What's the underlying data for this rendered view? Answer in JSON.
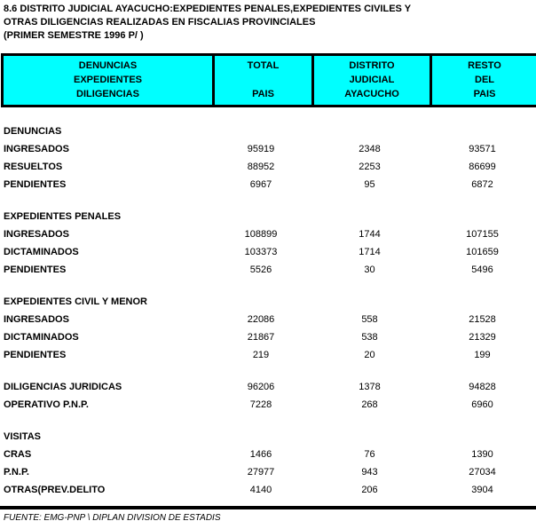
{
  "title": {
    "line1": "8.6  DISTRITO JUDICIAL AYACUCHO:EXPEDIENTES PENALES,EXPEDIENTES CIVILES Y",
    "line2": "OTRAS DILIGENCIAS REALIZADAS EN FISCALIAS PROVINCIALES",
    "line3": "(PRIMER SEMESTRE 1996 P/ )"
  },
  "colors": {
    "header_bg": "#00FFFF",
    "border": "#000000",
    "text": "#000000",
    "page_bg": "#FFFFFF"
  },
  "table": {
    "columns": [
      {
        "lines": [
          "DENUNCIAS",
          "EXPEDIENTES",
          "DILIGENCIAS"
        ]
      },
      {
        "lines": [
          "TOTAL",
          "",
          "PAIS"
        ]
      },
      {
        "lines": [
          "DISTRITO",
          "JUDICIAL",
          "AYACUCHO"
        ]
      },
      {
        "lines": [
          "RESTO",
          "DEL",
          "PAIS"
        ]
      }
    ],
    "rows": [
      {
        "type": "section",
        "label": "DENUNCIAS"
      },
      {
        "type": "data",
        "label": "INGRESADOS",
        "total": "95919",
        "ayacucho": "2348",
        "resto": "93571"
      },
      {
        "type": "data",
        "label": "RESUELTOS",
        "total": "88952",
        "ayacucho": "2253",
        "resto": "86699"
      },
      {
        "type": "data",
        "label": "PENDIENTES",
        "total": "6967",
        "ayacucho": "95",
        "resto": "6872"
      },
      {
        "type": "gap"
      },
      {
        "type": "section",
        "label": "EXPEDIENTES PENALES"
      },
      {
        "type": "data",
        "label": "INGRESADOS",
        "total": "108899",
        "ayacucho": "1744",
        "resto": "107155"
      },
      {
        "type": "data",
        "label": "DICTAMINADOS",
        "total": "103373",
        "ayacucho": "1714",
        "resto": "101659"
      },
      {
        "type": "data",
        "label": "PENDIENTES",
        "total": "5526",
        "ayacucho": "30",
        "resto": "5496"
      },
      {
        "type": "gap"
      },
      {
        "type": "section",
        "label": "EXPEDIENTES CIVIL Y MENOR"
      },
      {
        "type": "data",
        "label": "INGRESADOS",
        "total": "22086",
        "ayacucho": "558",
        "resto": "21528"
      },
      {
        "type": "data",
        "label": "DICTAMINADOS",
        "total": "21867",
        "ayacucho": "538",
        "resto": "21329"
      },
      {
        "type": "data",
        "label": "PENDIENTES",
        "total": "219",
        "ayacucho": "20",
        "resto": "199"
      },
      {
        "type": "gap"
      },
      {
        "type": "data",
        "label": "DILIGENCIAS JURIDICAS",
        "total": "96206",
        "ayacucho": "1378",
        "resto": "94828"
      },
      {
        "type": "data",
        "label": "OPERATIVO P.N.P.",
        "total": "7228",
        "ayacucho": "268",
        "resto": "6960"
      },
      {
        "type": "gap"
      },
      {
        "type": "section",
        "label": "VISITAS"
      },
      {
        "type": "data",
        "label": "CRAS",
        "total": "1466",
        "ayacucho": "76",
        "resto": "1390"
      },
      {
        "type": "data",
        "label": "P.N.P.",
        "total": "27977",
        "ayacucho": "943",
        "resto": "27034"
      },
      {
        "type": "data",
        "label": "OTRAS(PREV.DELITO",
        "total": "4140",
        "ayacucho": "206",
        "resto": "3904"
      }
    ]
  },
  "footer": {
    "source": "FUENTE: EMG-PNP \\ DIPLAN DIVISION DE ESTADIS"
  }
}
